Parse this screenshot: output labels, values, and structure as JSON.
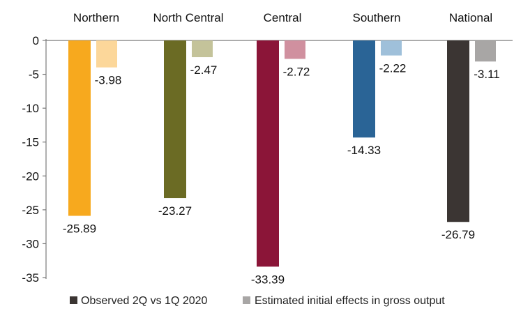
{
  "chart_data": {
    "type": "bar",
    "categories": [
      "Northern",
      "North Central",
      "Central",
      "Southern",
      "National"
    ],
    "series": [
      {
        "name": "Observed 2Q vs 1Q 2020",
        "values": [
          -25.89,
          -23.27,
          -33.39,
          -14.33,
          -26.79
        ],
        "labels": [
          "-25.89",
          "-23.27",
          "-33.39",
          "-14.33",
          "-26.79"
        ],
        "colors": [
          "#f7a91e",
          "#6b6b24",
          "#8b1538",
          "#2a6496",
          "#3b3533"
        ]
      },
      {
        "name": "Estimated initial effects in gross output",
        "values": [
          -3.98,
          -2.47,
          -2.72,
          -2.22,
          -3.11
        ],
        "labels": [
          "-3.98",
          "-2.47",
          "-2.72",
          "-2.22",
          "-3.11"
        ],
        "colors": [
          "#fcd79a",
          "#c4c39a",
          "#d0909f",
          "#9fc0da",
          "#a8a6a5"
        ]
      }
    ],
    "ylim": [
      -35,
      0
    ],
    "yticks": [
      "0",
      "-5",
      "-10",
      "-15",
      "-20",
      "-25",
      "-30",
      "-35"
    ],
    "legend": {
      "position": "bottom",
      "entries": [
        {
          "label": "Observed 2Q vs 1Q 2020",
          "color": "#3b3533"
        },
        {
          "label": "Estimated initial effects in gross output",
          "color": "#a8a6a5"
        }
      ]
    },
    "title": "",
    "xlabel": "",
    "ylabel": "",
    "grid": false
  }
}
